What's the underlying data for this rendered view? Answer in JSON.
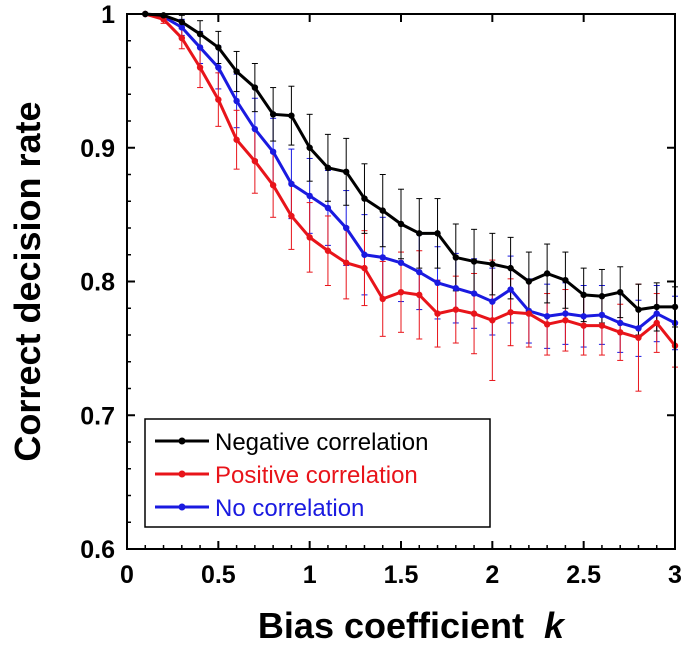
{
  "chart_data": {
    "type": "line",
    "title": "",
    "xlabel": "Bias coefficient",
    "xlabel_var": "k",
    "ylabel": "Correct decision rate",
    "xlim": [
      0,
      3
    ],
    "ylim": [
      0.6,
      1.0
    ],
    "xticks": [
      0,
      0.5,
      1,
      1.5,
      2,
      2.5,
      3
    ],
    "xtick_labels": [
      "0",
      "0.5",
      "1",
      "1.5",
      "2",
      "2.5",
      "3"
    ],
    "yticks": [
      0.6,
      0.7,
      0.8,
      0.9,
      1.0
    ],
    "ytick_labels": [
      "0.6",
      "0.7",
      "0.8",
      "0.9",
      "1"
    ],
    "grid": false,
    "legend_position": "bottom-left",
    "x": [
      0.1,
      0.2,
      0.3,
      0.4,
      0.5,
      0.6,
      0.7,
      0.8,
      0.9,
      1.0,
      1.1,
      1.2,
      1.3,
      1.4,
      1.5,
      1.6,
      1.7,
      1.8,
      1.9,
      2.0,
      2.1,
      2.2,
      2.3,
      2.4,
      2.5,
      2.6,
      2.7,
      2.8,
      2.9,
      3.0
    ],
    "series": [
      {
        "name": "Negative correlation",
        "color": "#000000",
        "values": [
          1.0,
          0.999,
          0.994,
          0.985,
          0.975,
          0.957,
          0.945,
          0.925,
          0.924,
          0.9,
          0.885,
          0.882,
          0.862,
          0.853,
          0.843,
          0.836,
          0.836,
          0.818,
          0.815,
          0.813,
          0.81,
          0.8,
          0.806,
          0.801,
          0.79,
          0.789,
          0.792,
          0.779,
          0.781,
          0.781
        ],
        "errors": [
          0.0,
          0.001,
          0.005,
          0.01,
          0.012,
          0.015,
          0.018,
          0.02,
          0.022,
          0.025,
          0.025,
          0.025,
          0.026,
          0.027,
          0.026,
          0.026,
          0.026,
          0.025,
          0.024,
          0.023,
          0.023,
          0.022,
          0.022,
          0.021,
          0.02,
          0.02,
          0.019,
          0.019,
          0.018,
          0.015
        ]
      },
      {
        "name": "Positive correlation",
        "color": "#e8141a",
        "values": [
          1.0,
          0.996,
          0.982,
          0.96,
          0.936,
          0.906,
          0.89,
          0.872,
          0.849,
          0.833,
          0.823,
          0.814,
          0.81,
          0.787,
          0.792,
          0.79,
          0.776,
          0.779,
          0.776,
          0.771,
          0.777,
          0.776,
          0.768,
          0.771,
          0.767,
          0.767,
          0.762,
          0.758,
          0.769,
          0.752
        ],
        "errors": [
          0.0,
          0.003,
          0.008,
          0.015,
          0.02,
          0.022,
          0.024,
          0.024,
          0.025,
          0.026,
          0.026,
          0.027,
          0.028,
          0.028,
          0.03,
          0.033,
          0.025,
          0.025,
          0.03,
          0.045,
          0.025,
          0.025,
          0.023,
          0.023,
          0.022,
          0.022,
          0.021,
          0.04,
          0.022,
          0.016
        ]
      },
      {
        "name": "No correlation",
        "color": "#1a1ae0",
        "values": [
          1.0,
          0.998,
          0.99,
          0.975,
          0.96,
          0.935,
          0.914,
          0.897,
          0.873,
          0.864,
          0.855,
          0.84,
          0.82,
          0.818,
          0.814,
          0.807,
          0.799,
          0.795,
          0.791,
          0.785,
          0.794,
          0.778,
          0.774,
          0.776,
          0.774,
          0.775,
          0.769,
          0.765,
          0.776,
          0.769
        ],
        "errors": [
          0.0,
          0.002,
          0.006,
          0.012,
          0.016,
          0.02,
          0.023,
          0.025,
          0.026,
          0.028,
          0.028,
          0.028,
          0.03,
          0.03,
          0.029,
          0.028,
          0.027,
          0.026,
          0.026,
          0.025,
          0.025,
          0.024,
          0.024,
          0.023,
          0.023,
          0.022,
          0.022,
          0.021,
          0.021,
          0.02
        ]
      }
    ]
  }
}
